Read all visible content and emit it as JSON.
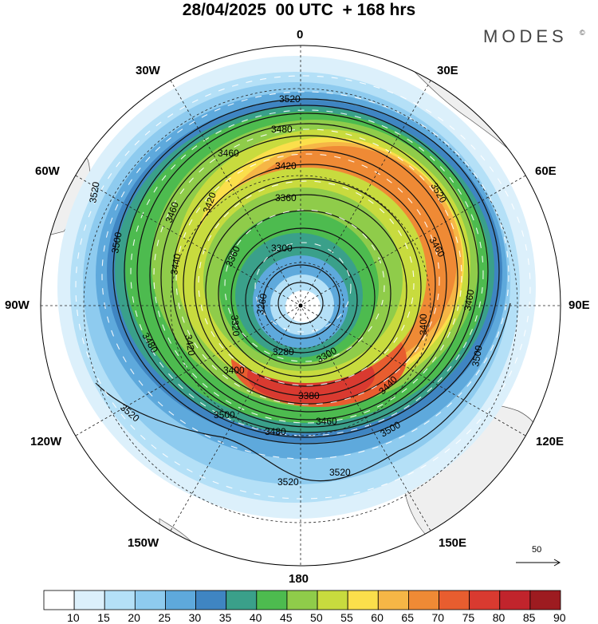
{
  "title": "28/04/2025  00 UTC  + 168 hrs",
  "brand": "MODES",
  "brand_mark": "©",
  "longitude_labels": {
    "lon_0": "0",
    "lon_30e": "30E",
    "lon_60e": "60E",
    "lon_90e": "90E",
    "lon_120e": "120E",
    "lon_150e": "150E",
    "lon_180": "180",
    "lon_150w": "150W",
    "lon_120w": "120W",
    "lon_90w": "90W",
    "lon_60w": "60W",
    "lon_30w": "30W"
  },
  "contour_labels": {
    "c3520a": "3520",
    "c3480a": "3480",
    "c3460a": "3460",
    "c3420a": "3420",
    "c3360a": "3360",
    "c3300a": "3300",
    "c3520b": "3520",
    "c3460b": "3460",
    "c3400a": "3400",
    "c3460c": "3460",
    "c3500a": "3500",
    "c3440a": "3440",
    "c3420b": "3420",
    "c3360b": "3360",
    "c3320a": "3320",
    "c3260a": "3260",
    "c3420c": "3420",
    "c3480b": "3480",
    "c3500b": "3500",
    "c3400b": "3400",
    "c3280a": "3280",
    "c3300b": "3300",
    "c3380a": "3380",
    "c3460d": "3460",
    "c3440b": "3440",
    "c3520c": "3520",
    "c3500c": "3500",
    "c3480c": "3480",
    "c3520d": "3520",
    "c3520e": "3520",
    "c3480d": "3480",
    "c3500d": "3500",
    "c3450a": "3460",
    "c3400c": "3400",
    "c3500e": "3500"
  },
  "reference_vector": {
    "value": "50"
  },
  "colorbar": {
    "labels": [
      "10",
      "15",
      "20",
      "25",
      "30",
      "35",
      "40",
      "45",
      "50",
      "55",
      "60",
      "65",
      "70",
      "75",
      "80",
      "85",
      "90"
    ],
    "colors": [
      "#ffffff",
      "#dcf0fb",
      "#b4e0f7",
      "#8ecbef",
      "#5ea9dc",
      "#3f85c2",
      "#3aa08a",
      "#4dbb4f",
      "#8fcc4a",
      "#c8db3e",
      "#fbdf4b",
      "#f6b646",
      "#ef8a35",
      "#e85d2f",
      "#d93a30",
      "#c1242c",
      "#9d1b20"
    ]
  }
}
